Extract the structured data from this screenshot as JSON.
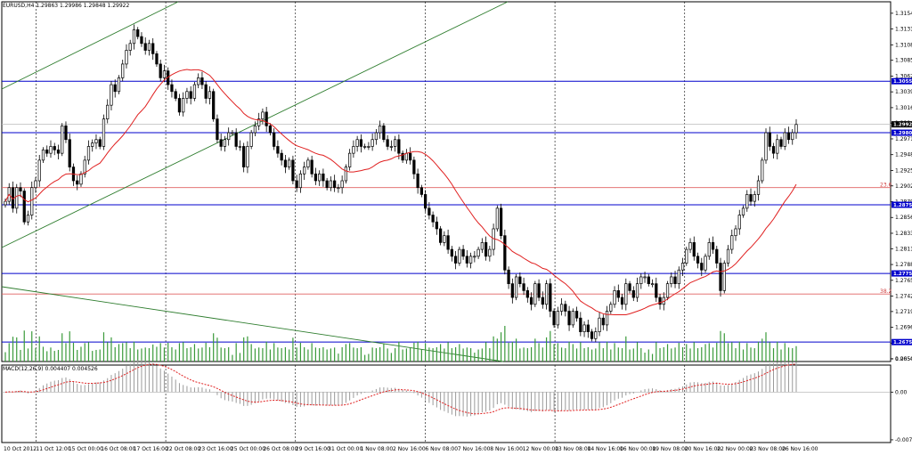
{
  "chart_data": {
    "type": "candlestick",
    "symbol_header": "EURUSD,H4  1.29863 1.29986 1.29848 1.29922",
    "indicator_header": "MACD(12,26,9) 0.004407 0.004526",
    "price_axis": {
      "ylim": [
        1.26467,
        1.31707
      ],
      "tick_labels": [
        "1.31540",
        "1.31310",
        "1.31080",
        "1.30855",
        "1.30625",
        "1.30395",
        "1.30165",
        "1.29940",
        "1.29710",
        "1.29480",
        "1.29250",
        "1.29025",
        "1.28795",
        "1.28565",
        "1.28335",
        "1.28110",
        "1.27880",
        "1.27650",
        "1.27420",
        "1.27195",
        "1.26965",
        "1.26735",
        "1.26505"
      ]
    },
    "time_axis": {
      "tick_labels": [
        "10 Oct 2012",
        "11 Oct 12:00",
        "15 Oct 00:00",
        "16 Oct 08:00",
        "17 Oct 16:00",
        "22 Oct 08:00",
        "23 Oct 16:00",
        "25 Oct 00:00",
        "26 Oct 08:00",
        "29 Oct 16:00",
        "31 Oct 00:00",
        "1 Nov 08:00",
        "2 Nov 16:00",
        "6 Nov 08:00",
        "7 Nov 16:00",
        "8 Nov 16:00",
        "12 Nov 00:00",
        "13 Nov 08:00",
        "14 Nov 16:00",
        "16 Nov 00:00",
        "19 Nov 08:00",
        "20 Nov 16:00",
        "22 Nov 00:00",
        "23 Nov 08:00",
        "26 Nov 16:00"
      ]
    },
    "horizontal_levels": [
      {
        "value": 1.3055,
        "label": "1.30550",
        "color": "#0000cc"
      },
      {
        "value": 1.298,
        "label": "1.29800",
        "color": "#0000cc"
      },
      {
        "value": 1.2875,
        "label": "1.28750",
        "color": "#0000cc"
      },
      {
        "value": 1.2775,
        "label": "1.27750",
        "color": "#0000cc"
      },
      {
        "value": 1.2675,
        "label": "1.26750",
        "color": "#0000cc"
      }
    ],
    "current_price": {
      "value": 1.29922,
      "label": "1.29922"
    },
    "fibonacci_levels": [
      {
        "value": 1.29,
        "label": "23.6"
      },
      {
        "value": 1.2745,
        "label": "38.2"
      }
    ],
    "macd_axis": {
      "ylim": [
        -0.00815,
        0.00437
      ],
      "tick_labels": [
        "0.005401",
        "0.00",
        "-0.00771"
      ]
    },
    "close_series": [
      1.288,
      1.29,
      1.287,
      1.29,
      1.2895,
      1.285,
      1.286,
      1.29,
      1.291,
      1.294,
      1.2955,
      1.295,
      1.296,
      1.2955,
      1.295,
      1.299,
      1.297,
      1.293,
      1.291,
      1.2905,
      1.292,
      1.294,
      1.296,
      1.2965,
      1.297,
      1.296,
      1.3,
      1.302,
      1.305,
      1.304,
      1.306,
      1.308,
      1.31,
      1.311,
      1.313,
      1.312,
      1.311,
      1.31,
      1.311,
      1.3095,
      1.308,
      1.306,
      1.307,
      1.305,
      1.304,
      1.303,
      1.301,
      1.303,
      1.304,
      1.303,
      1.305,
      1.306,
      1.305,
      1.303,
      1.304,
      1.3,
      1.297,
      1.296,
      1.297,
      1.298,
      1.298,
      1.296,
      1.296,
      1.293,
      1.296,
      1.298,
      1.299,
      1.3,
      1.301,
      1.299,
      1.298,
      1.296,
      1.295,
      1.294,
      1.293,
      1.294,
      1.291,
      1.29,
      1.292,
      1.293,
      1.294,
      1.292,
      1.291,
      1.292,
      1.291,
      1.29,
      1.291,
      1.29,
      1.29,
      1.291,
      1.293,
      1.295,
      1.296,
      1.297,
      1.296,
      1.296,
      1.296,
      1.297,
      1.298,
      1.299,
      1.297,
      1.296,
      1.296,
      1.297,
      1.295,
      1.294,
      1.295,
      1.294,
      1.292,
      1.29,
      1.289,
      1.287,
      1.286,
      1.285,
      1.284,
      1.282,
      1.283,
      1.281,
      1.28,
      1.279,
      1.281,
      1.28,
      1.279,
      1.28,
      1.28,
      1.281,
      1.282,
      1.28,
      1.281,
      1.284,
      1.287,
      1.283,
      1.278,
      1.276,
      1.274,
      1.277,
      1.276,
      1.275,
      1.274,
      1.273,
      1.276,
      1.274,
      1.273,
      1.276,
      1.272,
      1.27,
      1.272,
      1.273,
      1.272,
      1.27,
      1.272,
      1.271,
      1.269,
      1.27,
      1.269,
      1.268,
      1.269,
      1.271,
      1.27,
      1.272,
      1.273,
      1.275,
      1.274,
      1.273,
      1.276,
      1.275,
      1.274,
      1.276,
      1.277,
      1.277,
      1.276,
      1.276,
      1.274,
      1.273,
      1.274,
      1.276,
      1.277,
      1.276,
      1.278,
      1.279,
      1.281,
      1.282,
      1.28,
      1.279,
      1.278,
      1.28,
      1.282,
      1.281,
      1.279,
      1.275,
      1.279,
      1.281,
      1.283,
      1.284,
      1.286,
      1.287,
      1.289,
      1.288,
      1.289,
      1.291,
      1.294,
      1.298,
      1.296,
      1.295,
      1.297,
      1.296,
      1.298,
      1.297,
      1.298,
      1.2992
    ]
  }
}
